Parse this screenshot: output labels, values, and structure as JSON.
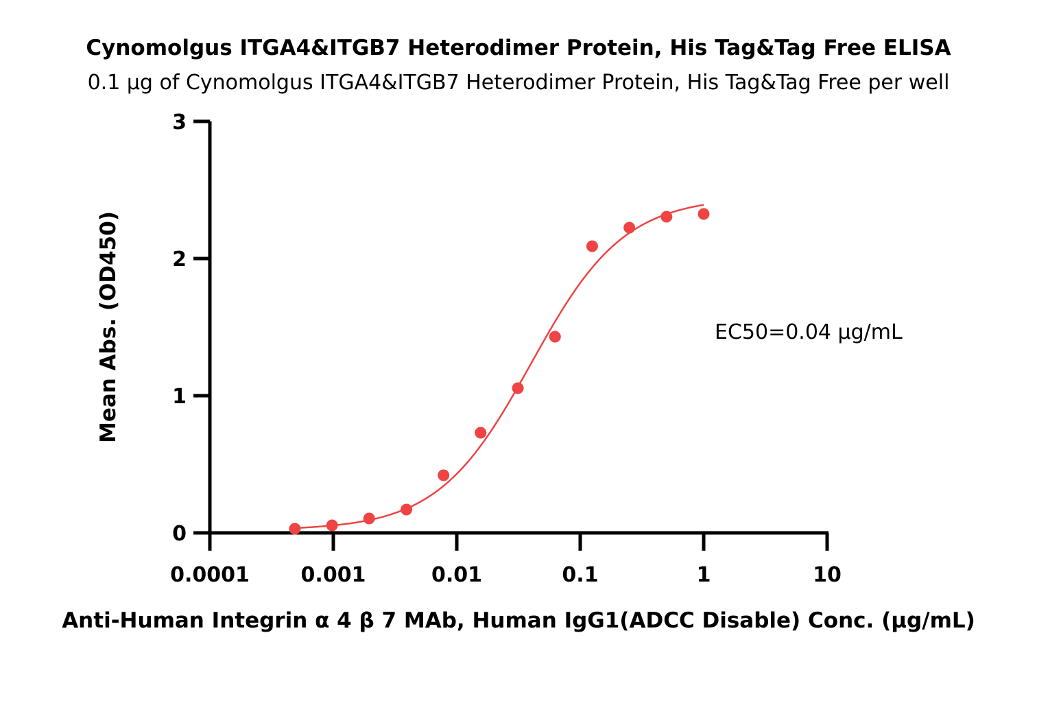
{
  "chart_data": {
    "type": "scatter",
    "title": "Cynomolgus ITGA4&ITGB7 Heterodimer Protein, His Tag&Tag Free ELISA",
    "subtitle": "0.1 μg of Cynomolgus ITGA4&ITGB7 Heterodimer Protein, His Tag&Tag Free per well",
    "xlabel": "Anti-Human Integrin α 4 β 7 MAb, Human IgG1(ADCC Disable)  Conc. (μg/mL)",
    "ylabel": "Mean Abs. (OD450)",
    "xscale": "log",
    "xlim": [
      0.0001,
      10
    ],
    "ylim": [
      0,
      3
    ],
    "x_ticks": [
      0.0001,
      0.001,
      0.01,
      0.1,
      1,
      10
    ],
    "x_tick_labels": [
      "0.0001",
      "0.001",
      "0.01",
      "0.1",
      "1",
      "10"
    ],
    "y_ticks": [
      0,
      1,
      2,
      3
    ],
    "y_tick_labels": [
      "0",
      "1",
      "2",
      "3"
    ],
    "grid": false,
    "marker_color": "#ee4444",
    "curve_color": "#ee4444",
    "points": {
      "x": [
        0.000488,
        0.000977,
        0.00195,
        0.00391,
        0.00781,
        0.0156,
        0.03125,
        0.0625,
        0.125,
        0.25,
        0.5,
        1
      ],
      "y": [
        0.03,
        0.055,
        0.105,
        0.17,
        0.42,
        0.73,
        1.055,
        1.43,
        2.09,
        2.225,
        2.305,
        2.325
      ]
    },
    "fit": {
      "model": "4PL",
      "bottom": 0.02,
      "top": 2.45,
      "ec50": 0.04,
      "hill": 1.15
    },
    "annotation": "EC50=0.04 μg/mL"
  }
}
